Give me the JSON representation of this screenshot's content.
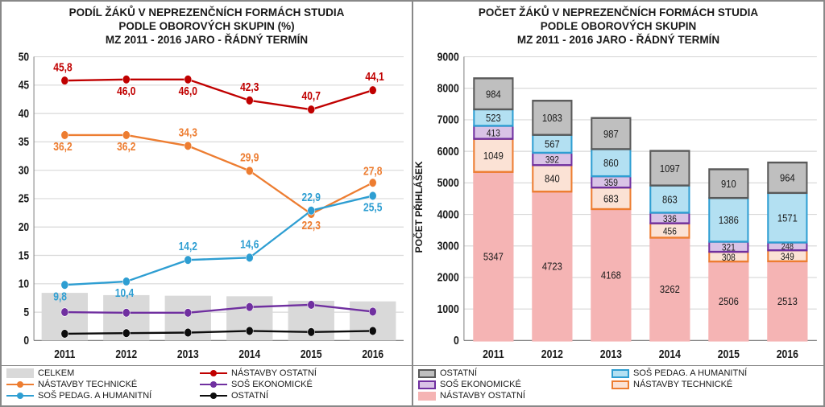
{
  "left_chart": {
    "type": "line+bar",
    "title_l1": "PODÍL ŽÁKŮ V NEPREZENČNÍCH FORMÁCH STUDIA",
    "title_l2": "PODLE OBOROVÝCH SKUPIN (%)",
    "title_l3": "MZ 2011 - 2016 JARO - ŘÁDNÝ TERMÍN",
    "years": [
      "2011",
      "2012",
      "2013",
      "2014",
      "2015",
      "2016"
    ],
    "ylim": [
      0,
      50
    ],
    "ytick_step": 5,
    "grid_color": "#d9d9d9",
    "background_color": "#ffffff",
    "axis_color": "#808080",
    "tick_label_fontsize": 12,
    "tick_label_fontweight": "bold",
    "bar_series": {
      "name": "CELKEM",
      "color": "#d9d9d9",
      "values": [
        8.4,
        8.0,
        7.9,
        7.8,
        7.0,
        6.9
      ],
      "bar_width": 0.75
    },
    "line_series": [
      {
        "name": "NÁSTAVBY OSTATNÍ",
        "color": "#c00000",
        "values": [
          45.8,
          46.0,
          46.0,
          42.3,
          40.7,
          44.1
        ]
      },
      {
        "name": "NÁSTAVBY TECHNICKÉ",
        "color": "#ed7d31",
        "values": [
          36.2,
          36.2,
          34.3,
          29.9,
          22.3,
          27.8
        ]
      },
      {
        "name": "SOŠ EKONOMICKÉ",
        "color": "#7030a0",
        "values": [
          5.0,
          4.9,
          4.9,
          5.9,
          6.3,
          5.1
        ]
      },
      {
        "name": "SOŠ PEDAG. A HUMANITNÍ",
        "color": "#2e9ed2",
        "values": [
          9.8,
          10.4,
          14.2,
          14.6,
          22.9,
          25.5
        ]
      },
      {
        "name": "OSTATNÍ",
        "color": "#0d0d0d",
        "values": [
          1.2,
          1.3,
          1.4,
          1.7,
          1.5,
          1.7
        ]
      }
    ],
    "data_labels": [
      {
        "series": 0,
        "labels": [
          "45,8",
          "46,0",
          "46,0",
          "42,3",
          "40,7",
          "44,1"
        ]
      },
      {
        "series": 1,
        "labels": [
          "36,2",
          "36,2",
          "34,3",
          "29,9",
          "22,3",
          "27,8"
        ]
      },
      {
        "series": 3,
        "labels": [
          "9,8",
          "10,4",
          "14,2",
          "14,6",
          "22,9",
          "25,5"
        ]
      }
    ],
    "legend_order": [
      {
        "kind": "bar",
        "key": "bar_series"
      },
      {
        "kind": "line",
        "idx": 0
      },
      {
        "kind": "line",
        "idx": 1
      },
      {
        "kind": "line",
        "idx": 2
      },
      {
        "kind": "line",
        "idx": 3
      },
      {
        "kind": "line",
        "idx": 4
      }
    ]
  },
  "right_chart": {
    "type": "stacked-bar",
    "title_l1": "POČET ŽÁKŮ V NEPREZENČNÍCH FORMÁCH STUDIA",
    "title_l2": "PODLE OBOROVÝCH SKUPIN",
    "title_l3": "MZ 2011 - 2016 JARO - ŘÁDNÝ TERMÍN",
    "ylabel": "POČET PŘIHLÁŠEK",
    "years": [
      "2011",
      "2012",
      "2013",
      "2014",
      "2015",
      "2016"
    ],
    "ylim": [
      0,
      9000
    ],
    "ytick_step": 1000,
    "grid_color": "#d9d9d9",
    "background_color": "#ffffff",
    "axis_color": "#808080",
    "tick_label_fontsize": 12,
    "tick_label_fontweight": "bold",
    "bar_width": 0.66,
    "segments": [
      {
        "name": "NÁSTAVBY OSTATNÍ",
        "fill": "#f5b4b4",
        "border": "#f5b4b4",
        "values": [
          5347,
          4723,
          4168,
          3262,
          2506,
          2513
        ]
      },
      {
        "name": "NÁSTAVBY TECHNICKÉ",
        "fill": "#fbe2d5",
        "border": "#ed7d31",
        "values": [
          1049,
          840,
          683,
          456,
          308,
          349
        ]
      },
      {
        "name": "SOŠ EKONOMICKÉ",
        "fill": "#d9c3e6",
        "border": "#7030a0",
        "values": [
          413,
          392,
          359,
          336,
          321,
          248
        ]
      },
      {
        "name": "SOŠ PEDAG. A HUMANITNÍ",
        "fill": "#b3e0f2",
        "border": "#2e9ed2",
        "values": [
          523,
          567,
          860,
          863,
          1386,
          1571
        ]
      },
      {
        "name": "OSTATNÍ",
        "fill": "#bfbfbf",
        "border": "#595959",
        "values": [
          984,
          1083,
          987,
          1097,
          910,
          964
        ]
      }
    ],
    "legend_order": [
      4,
      3,
      2,
      1,
      0
    ]
  }
}
